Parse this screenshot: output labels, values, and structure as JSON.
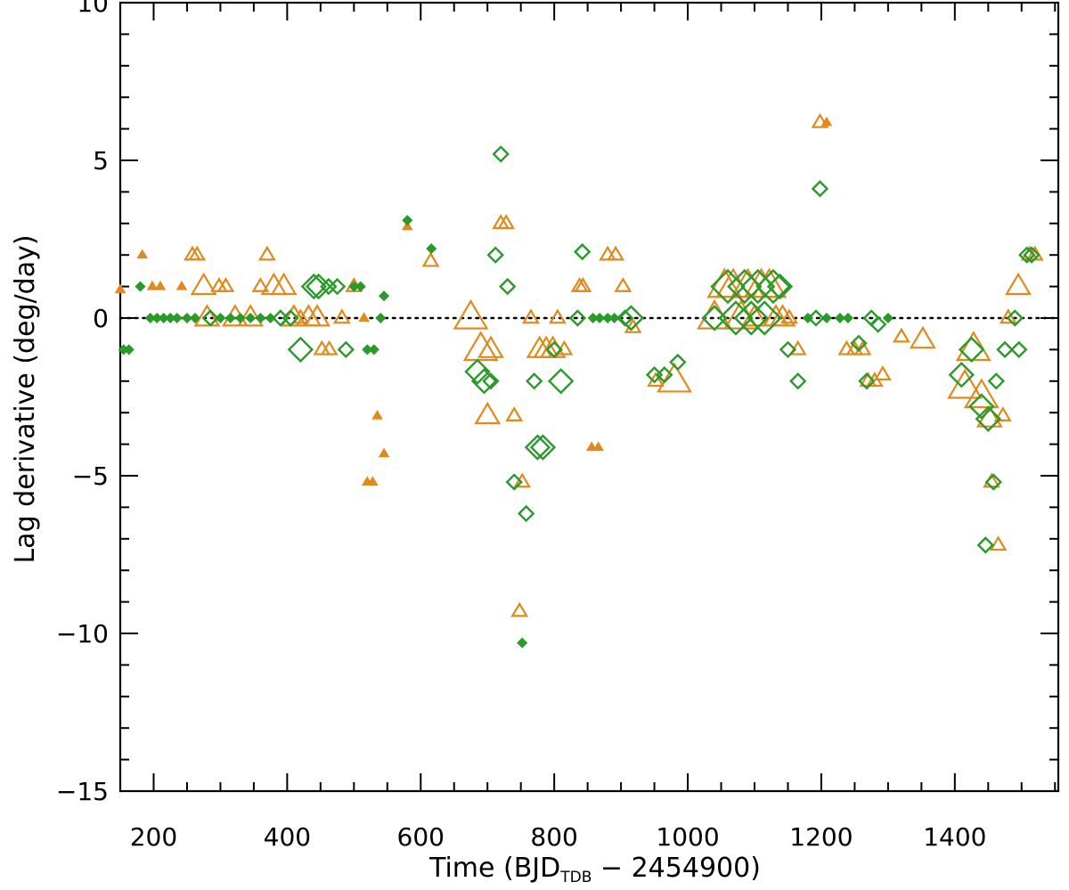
{
  "chart_data": {
    "type": "scatter",
    "title": "",
    "xlabel": {
      "prefix": "Time (BJD",
      "subscript": "TDB",
      "suffix": " − 2454900)"
    },
    "ylabel": "Lag derivative (deg/day)",
    "xlim": [
      150,
      1555
    ],
    "ylim": [
      -15,
      10
    ],
    "x_ticks": [
      200,
      400,
      600,
      800,
      1000,
      1200,
      1400
    ],
    "y_ticks": [
      10,
      5,
      0,
      -5,
      -10,
      -15
    ],
    "y_tick_labels": [
      "10",
      "5",
      "0",
      "−5",
      "−10",
      "−15"
    ],
    "zero_line": {
      "y": 0,
      "style": "dotted"
    },
    "colors": {
      "orange": "#e08a1c",
      "green": "#2a9a2a",
      "axis": "#000000"
    },
    "series": [
      {
        "name": "triangles",
        "marker": "triangle",
        "color": "#e08a1c",
        "points": [
          [
            150,
            0.9,
            1
          ],
          [
            183,
            2.0,
            1
          ],
          [
            198,
            1.0,
            1
          ],
          [
            210,
            1.0,
            1
          ],
          [
            242,
            1.0,
            1
          ],
          [
            258,
            2.0,
            2
          ],
          [
            265,
            2.0,
            2
          ],
          [
            275,
            1.0,
            3
          ],
          [
            280,
            0.0,
            3
          ],
          [
            298,
            1.0,
            2
          ],
          [
            308,
            1.0,
            2
          ],
          [
            322,
            0.0,
            3
          ],
          [
            345,
            0.0,
            3
          ],
          [
            360,
            1.0,
            2
          ],
          [
            370,
            2.0,
            2
          ],
          [
            380,
            1.0,
            3
          ],
          [
            395,
            1.0,
            3
          ],
          [
            410,
            0.0,
            3
          ],
          [
            420,
            0.0,
            2
          ],
          [
            432,
            0.0,
            3
          ],
          [
            445,
            0.0,
            3
          ],
          [
            452,
            -1.0,
            2
          ],
          [
            463,
            -1.0,
            2
          ],
          [
            482,
            0.0,
            2
          ],
          [
            500,
            1.0,
            2
          ],
          [
            515,
            0.0,
            1
          ],
          [
            535,
            -3.1,
            1
          ],
          [
            545,
            -4.3,
            1
          ],
          [
            520,
            -5.2,
            1
          ],
          [
            528,
            -5.2,
            1
          ],
          [
            580,
            2.9,
            1
          ],
          [
            615,
            1.8,
            2
          ],
          [
            675,
            0.0,
            4
          ],
          [
            690,
            -1.0,
            4
          ],
          [
            705,
            -1.0,
            3
          ],
          [
            700,
            -3.1,
            3
          ],
          [
            720,
            3.0,
            2
          ],
          [
            728,
            3.0,
            2
          ],
          [
            740,
            -3.1,
            2
          ],
          [
            752,
            -5.2,
            2
          ],
          [
            748,
            -9.3,
            2
          ],
          [
            765,
            0.0,
            2
          ],
          [
            778,
            -1.0,
            3
          ],
          [
            788,
            -1.0,
            3
          ],
          [
            798,
            -1.0,
            3
          ],
          [
            805,
            0.0,
            2
          ],
          [
            815,
            -1.0,
            2
          ],
          [
            838,
            1.0,
            2
          ],
          [
            843,
            1.0,
            2
          ],
          [
            856,
            -4.1,
            1
          ],
          [
            866,
            -4.1,
            1
          ],
          [
            880,
            2.0,
            2
          ],
          [
            892,
            2.0,
            2
          ],
          [
            903,
            1.0,
            2
          ],
          [
            918,
            -0.3,
            2
          ],
          [
            952,
            -2.0,
            2
          ],
          [
            980,
            -2.0,
            4
          ],
          [
            1040,
            0.0,
            4
          ],
          [
            1055,
            1.0,
            4
          ],
          [
            1068,
            1.0,
            4
          ],
          [
            1080,
            0.0,
            4
          ],
          [
            1090,
            1.0,
            4
          ],
          [
            1100,
            0.0,
            3
          ],
          [
            1110,
            1.0,
            4
          ],
          [
            1122,
            1.0,
            4
          ],
          [
            1132,
            0.0,
            3
          ],
          [
            1142,
            0.0,
            3
          ],
          [
            1152,
            0.0,
            2
          ],
          [
            1165,
            -1.0,
            2
          ],
          [
            1198,
            6.2,
            2
          ],
          [
            1208,
            6.2,
            1
          ],
          [
            1238,
            -1.0,
            2
          ],
          [
            1250,
            -1.0,
            2
          ],
          [
            1262,
            -1.0,
            2
          ],
          [
            1270,
            -2.0,
            2
          ],
          [
            1280,
            -2.0,
            2
          ],
          [
            1292,
            -1.8,
            2
          ],
          [
            1320,
            -0.6,
            2
          ],
          [
            1352,
            -0.7,
            3
          ],
          [
            1415,
            -2.2,
            4
          ],
          [
            1428,
            -1.0,
            4
          ],
          [
            1440,
            -2.5,
            4
          ],
          [
            1452,
            -3.2,
            3
          ],
          [
            1455,
            -5.2,
            2
          ],
          [
            1465,
            -7.2,
            2
          ],
          [
            1472,
            -3.1,
            2
          ],
          [
            1480,
            0.0,
            2
          ],
          [
            1495,
            1.0,
            3
          ],
          [
            1512,
            2.0,
            2
          ],
          [
            1520,
            2.0,
            2
          ]
        ]
      },
      {
        "name": "diamonds",
        "marker": "diamond",
        "color": "#2a9a2a",
        "points": [
          [
            155,
            -1.0,
            1
          ],
          [
            163,
            -1.0,
            1
          ],
          [
            180,
            1.0,
            1
          ],
          [
            195,
            0.0,
            1
          ],
          [
            205,
            0.0,
            1
          ],
          [
            215,
            0.0,
            1
          ],
          [
            225,
            0.0,
            1
          ],
          [
            235,
            0.0,
            1
          ],
          [
            250,
            0.0,
            1
          ],
          [
            262,
            0.0,
            1
          ],
          [
            285,
            0.0,
            2
          ],
          [
            300,
            0.0,
            1
          ],
          [
            315,
            0.0,
            1
          ],
          [
            330,
            0.0,
            1
          ],
          [
            345,
            0.0,
            1
          ],
          [
            360,
            0.0,
            1
          ],
          [
            375,
            0.0,
            1
          ],
          [
            390,
            0.0,
            2
          ],
          [
            405,
            0.0,
            2
          ],
          [
            420,
            -1.0,
            3
          ],
          [
            440,
            1.0,
            3
          ],
          [
            447,
            1.0,
            3
          ],
          [
            462,
            1.0,
            2
          ],
          [
            475,
            1.0,
            2
          ],
          [
            488,
            -1.0,
            2
          ],
          [
            500,
            1.0,
            1
          ],
          [
            510,
            1.0,
            1
          ],
          [
            520,
            -1.0,
            1
          ],
          [
            530,
            -1.0,
            1
          ],
          [
            540,
            0.0,
            1
          ],
          [
            545,
            0.7,
            1
          ],
          [
            580,
            3.1,
            1
          ],
          [
            616,
            2.2,
            1
          ],
          [
            685,
            -1.7,
            3
          ],
          [
            695,
            -2.0,
            3
          ],
          [
            705,
            -2.0,
            2
          ],
          [
            712,
            2.0,
            2
          ],
          [
            720,
            5.2,
            2
          ],
          [
            730,
            1.0,
            2
          ],
          [
            740,
            -5.2,
            2
          ],
          [
            752,
            -10.3,
            1
          ],
          [
            758,
            -6.2,
            2
          ],
          [
            770,
            -2.0,
            2
          ],
          [
            775,
            -4.1,
            3
          ],
          [
            783,
            -4.1,
            3
          ],
          [
            800,
            -1.0,
            2
          ],
          [
            810,
            -2.0,
            3
          ],
          [
            835,
            0.0,
            2
          ],
          [
            842,
            2.1,
            2
          ],
          [
            858,
            0.0,
            1
          ],
          [
            868,
            0.0,
            1
          ],
          [
            880,
            0.0,
            1
          ],
          [
            890,
            0.0,
            1
          ],
          [
            906,
            0.0,
            2
          ],
          [
            915,
            0.0,
            3
          ],
          [
            950,
            -1.8,
            2
          ],
          [
            965,
            -1.8,
            2
          ],
          [
            985,
            -1.4,
            2
          ],
          [
            1040,
            0.0,
            3
          ],
          [
            1060,
            1.0,
            4
          ],
          [
            1072,
            0.0,
            4
          ],
          [
            1085,
            1.0,
            4
          ],
          [
            1095,
            0.0,
            4
          ],
          [
            1105,
            1.0,
            4
          ],
          [
            1115,
            0.0,
            4
          ],
          [
            1128,
            1.0,
            4
          ],
          [
            1138,
            1.0,
            3
          ],
          [
            1150,
            -1.0,
            2
          ],
          [
            1165,
            -2.0,
            2
          ],
          [
            1180,
            0.0,
            1
          ],
          [
            1192,
            0.0,
            2
          ],
          [
            1198,
            4.1,
            2
          ],
          [
            1208,
            0.0,
            1
          ],
          [
            1228,
            0.0,
            1
          ],
          [
            1240,
            0.0,
            1
          ],
          [
            1256,
            -0.8,
            2
          ],
          [
            1268,
            -2.0,
            2
          ],
          [
            1275,
            0.0,
            2
          ],
          [
            1285,
            -0.2,
            2
          ],
          [
            1300,
            0.0,
            1
          ],
          [
            1410,
            -1.8,
            3
          ],
          [
            1425,
            -1.0,
            3
          ],
          [
            1440,
            -2.8,
            3
          ],
          [
            1450,
            -3.2,
            3
          ],
          [
            1458,
            -5.2,
            2
          ],
          [
            1446,
            -7.2,
            2
          ],
          [
            1462,
            -2.0,
            2
          ],
          [
            1475,
            -1.0,
            2
          ],
          [
            1490,
            0.0,
            2
          ],
          [
            1496,
            -1.0,
            2
          ],
          [
            1508,
            2.0,
            2
          ],
          [
            1515,
            2.0,
            2
          ]
        ]
      }
    ]
  }
}
